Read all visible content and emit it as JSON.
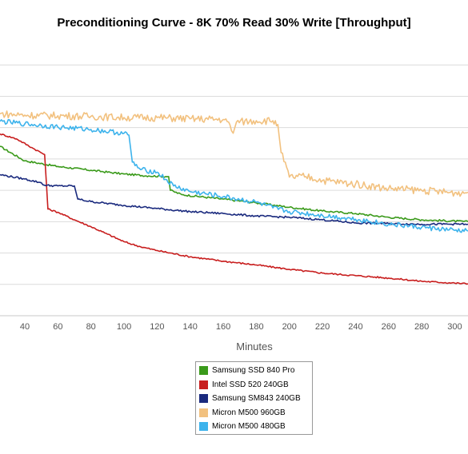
{
  "chart_data": {
    "type": "line",
    "title": "Preconditioning Curve - 8K 70% Read 30% Write [Throughput]",
    "xlabel": "Minutes",
    "ylabel": "",
    "xlim": [
      25,
      308
    ],
    "ylim": [
      0,
      450
    ],
    "x_ticks": [
      40,
      60,
      80,
      100,
      120,
      140,
      160,
      180,
      200,
      220,
      240,
      260,
      280,
      300
    ],
    "y_gridlines": [
      50,
      100,
      150,
      200,
      250,
      300,
      350,
      400
    ],
    "grid": "horizontal",
    "legend_position": "bottom-center",
    "series": [
      {
        "name": "Samsung SSD 840 Pro",
        "color": "#3a9a1a",
        "points": [
          [
            25,
            270
          ],
          [
            40,
            247
          ],
          [
            60,
            238
          ],
          [
            80,
            232
          ],
          [
            100,
            226
          ],
          [
            115,
            223
          ],
          [
            127,
            222
          ],
          [
            128,
            200
          ],
          [
            135,
            193
          ],
          [
            160,
            186
          ],
          [
            180,
            180
          ],
          [
            200,
            173
          ],
          [
            220,
            167
          ],
          [
            240,
            163
          ],
          [
            260,
            157
          ],
          [
            280,
            153
          ],
          [
            308,
            150
          ]
        ]
      },
      {
        "name": "Intel SSD 520 240GB",
        "color": "#c81e1e",
        "points": [
          [
            25,
            290
          ],
          [
            35,
            282
          ],
          [
            45,
            267
          ],
          [
            52,
            257
          ],
          [
            54,
            170
          ],
          [
            60,
            165
          ],
          [
            70,
            153
          ],
          [
            80,
            142
          ],
          [
            90,
            130
          ],
          [
            100,
            118
          ],
          [
            110,
            110
          ],
          [
            120,
            104
          ],
          [
            140,
            94
          ],
          [
            160,
            87
          ],
          [
            180,
            81
          ],
          [
            200,
            74
          ],
          [
            220,
            68
          ],
          [
            240,
            64
          ],
          [
            260,
            60
          ],
          [
            280,
            55
          ],
          [
            300,
            52
          ],
          [
            308,
            51
          ]
        ]
      },
      {
        "name": "Samsung SM843 240GB",
        "color": "#1a2a7e",
        "points": [
          [
            25,
            225
          ],
          [
            40,
            218
          ],
          [
            50,
            212
          ],
          [
            52,
            208
          ],
          [
            60,
            207
          ],
          [
            70,
            207
          ],
          [
            72,
            186
          ],
          [
            80,
            182
          ],
          [
            100,
            176
          ],
          [
            120,
            171
          ],
          [
            140,
            166
          ],
          [
            160,
            163
          ],
          [
            180,
            159
          ],
          [
            200,
            157
          ],
          [
            220,
            153
          ],
          [
            240,
            148
          ],
          [
            260,
            147
          ],
          [
            280,
            146
          ],
          [
            308,
            146
          ]
        ]
      },
      {
        "name": "Micron M500 960GB",
        "color": "#f2c17f",
        "points": [
          [
            25,
            322
          ],
          [
            40,
            320
          ],
          [
            60,
            319
          ],
          [
            80,
            318
          ],
          [
            100,
            316
          ],
          [
            120,
            316
          ],
          [
            140,
            314
          ],
          [
            160,
            313
          ],
          [
            164,
            305
          ],
          [
            166,
            291
          ],
          [
            168,
            309
          ],
          [
            180,
            311
          ],
          [
            190,
            311
          ],
          [
            193,
            305
          ],
          [
            195,
            260
          ],
          [
            200,
            221
          ],
          [
            210,
            222
          ],
          [
            220,
            216
          ],
          [
            240,
            210
          ],
          [
            260,
            203
          ],
          [
            280,
            200
          ],
          [
            300,
            196
          ],
          [
            308,
            197
          ]
        ]
      },
      {
        "name": "Micron M500 480GB",
        "color": "#3db3ec",
        "points": [
          [
            25,
            310
          ],
          [
            40,
            306
          ],
          [
            60,
            301
          ],
          [
            80,
            297
          ],
          [
            100,
            291
          ],
          [
            103,
            288
          ],
          [
            105,
            245
          ],
          [
            110,
            233
          ],
          [
            120,
            229
          ],
          [
            130,
            207
          ],
          [
            140,
            198
          ],
          [
            160,
            190
          ],
          [
            180,
            181
          ],
          [
            190,
            172
          ],
          [
            200,
            166
          ],
          [
            220,
            160
          ],
          [
            240,
            154
          ],
          [
            260,
            146
          ],
          [
            280,
            141
          ],
          [
            300,
            136
          ],
          [
            308,
            135
          ]
        ]
      }
    ]
  }
}
